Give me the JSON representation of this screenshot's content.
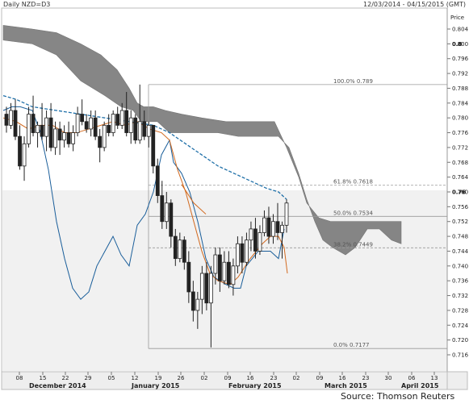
{
  "chart_data": {
    "type": "candlestick",
    "header_left": "Daily NZD=D3",
    "header_right": "12/03/2014 - 04/15/2015 (GMT)",
    "ylabel": "Price",
    "ylim": [
      0.714,
      0.808
    ],
    "y_ticks": [
      0.716,
      0.72,
      0.724,
      0.728,
      0.732,
      0.736,
      0.74,
      0.744,
      0.748,
      0.752,
      0.756,
      0.76,
      0.764,
      0.768,
      0.772,
      0.776,
      0.78,
      0.784,
      0.788,
      0.792,
      0.796,
      0.8,
      0.804
    ],
    "price_labels": [
      {
        "text": "0.8",
        "bold": true
      },
      {
        "text": "0.76",
        "bold": true
      }
    ],
    "day_ticks": [
      "08",
      "15",
      "22",
      "29",
      "05",
      "12",
      "19",
      "26",
      "02",
      "09",
      "16",
      "23",
      "02",
      "09",
      "16",
      "23",
      "30",
      "06",
      "13"
    ],
    "month_labels": [
      "December 2014",
      "January 2015",
      "February 2015",
      "March 2015",
      "April 2015"
    ],
    "fibonacci": [
      {
        "label": "100.0%",
        "value": "0.789"
      },
      {
        "label": "61.8%",
        "value": "0.7618"
      },
      {
        "label": "50.0%",
        "value": "0.7534"
      },
      {
        "label": "38.2%",
        "value": "0.7449"
      },
      {
        "label": "0.0%",
        "value": "0.7177"
      }
    ],
    "candles": [
      [
        0.781,
        0.783,
        0.776,
        0.778
      ],
      [
        0.778,
        0.784,
        0.777,
        0.782
      ],
      [
        0.782,
        0.785,
        0.774,
        0.775
      ],
      [
        0.775,
        0.778,
        0.766,
        0.767
      ],
      [
        0.767,
        0.775,
        0.763,
        0.773
      ],
      [
        0.773,
        0.783,
        0.772,
        0.781
      ],
      [
        0.781,
        0.786,
        0.775,
        0.776
      ],
      [
        0.776,
        0.779,
        0.772,
        0.778
      ],
      [
        0.778,
        0.784,
        0.774,
        0.775
      ],
      [
        0.775,
        0.782,
        0.771,
        0.78
      ],
      [
        0.78,
        0.784,
        0.771,
        0.772
      ],
      [
        0.772,
        0.779,
        0.77,
        0.777
      ],
      [
        0.777,
        0.779,
        0.77,
        0.774
      ],
      [
        0.774,
        0.778,
        0.772,
        0.776
      ],
      [
        0.776,
        0.779,
        0.772,
        0.773
      ],
      [
        0.773,
        0.778,
        0.771,
        0.776
      ],
      [
        0.776,
        0.783,
        0.775,
        0.781
      ],
      [
        0.781,
        0.785,
        0.778,
        0.779
      ],
      [
        0.779,
        0.781,
        0.776,
        0.777
      ],
      [
        0.777,
        0.782,
        0.775,
        0.78
      ],
      [
        0.78,
        0.782,
        0.774,
        0.775
      ],
      [
        0.775,
        0.777,
        0.768,
        0.772
      ],
      [
        0.772,
        0.779,
        0.771,
        0.778
      ],
      [
        0.778,
        0.781,
        0.775,
        0.776
      ],
      [
        0.776,
        0.782,
        0.775,
        0.781
      ],
      [
        0.781,
        0.783,
        0.777,
        0.778
      ],
      [
        0.778,
        0.784,
        0.777,
        0.782
      ],
      [
        0.782,
        0.787,
        0.775,
        0.776
      ],
      [
        0.776,
        0.782,
        0.773,
        0.78
      ],
      [
        0.78,
        0.781,
        0.773,
        0.774
      ],
      [
        0.774,
        0.789,
        0.773,
        0.779
      ],
      [
        0.779,
        0.782,
        0.774,
        0.775
      ],
      [
        0.775,
        0.779,
        0.772,
        0.778
      ],
      [
        0.778,
        0.778,
        0.765,
        0.767
      ],
      [
        0.767,
        0.769,
        0.757,
        0.759
      ],
      [
        0.759,
        0.763,
        0.75,
        0.752
      ],
      [
        0.752,
        0.76,
        0.75,
        0.757
      ],
      [
        0.757,
        0.758,
        0.745,
        0.748
      ],
      [
        0.748,
        0.75,
        0.74,
        0.742
      ],
      [
        0.742,
        0.749,
        0.741,
        0.747
      ],
      [
        0.747,
        0.748,
        0.739,
        0.741
      ],
      [
        0.741,
        0.744,
        0.73,
        0.733
      ],
      [
        0.733,
        0.736,
        0.725,
        0.728
      ],
      [
        0.728,
        0.733,
        0.723,
        0.731
      ],
      [
        0.731,
        0.74,
        0.727,
        0.738
      ],
      [
        0.738,
        0.741,
        0.728,
        0.73
      ],
      [
        0.73,
        0.74,
        0.718,
        0.738
      ],
      [
        0.738,
        0.745,
        0.735,
        0.743
      ],
      [
        0.743,
        0.745,
        0.733,
        0.736
      ],
      [
        0.736,
        0.744,
        0.735,
        0.741
      ],
      [
        0.741,
        0.744,
        0.734,
        0.735
      ],
      [
        0.735,
        0.742,
        0.732,
        0.74
      ],
      [
        0.74,
        0.748,
        0.738,
        0.746
      ],
      [
        0.746,
        0.748,
        0.738,
        0.741
      ],
      [
        0.741,
        0.749,
        0.74,
        0.747
      ],
      [
        0.747,
        0.752,
        0.744,
        0.75
      ],
      [
        0.75,
        0.753,
        0.742,
        0.744
      ],
      [
        0.744,
        0.751,
        0.743,
        0.749
      ],
      [
        0.749,
        0.755,
        0.748,
        0.753
      ],
      [
        0.753,
        0.756,
        0.746,
        0.748
      ],
      [
        0.748,
        0.754,
        0.746,
        0.752
      ],
      [
        0.752,
        0.757,
        0.747,
        0.749
      ],
      [
        0.749,
        0.752,
        0.742,
        0.751
      ],
      [
        0.751,
        0.758,
        0.749,
        0.757
      ]
    ],
    "source": "Source: Thomson Reuters",
    "colors": {
      "candle": "#222222",
      "cloud": "#808080",
      "kijun": "#1a5e9a",
      "tenkan": "#d2691e",
      "kijun_dash": "#1e6fa8",
      "fib_line": "#999999",
      "lower_bg": "#f1f1f1"
    }
  }
}
